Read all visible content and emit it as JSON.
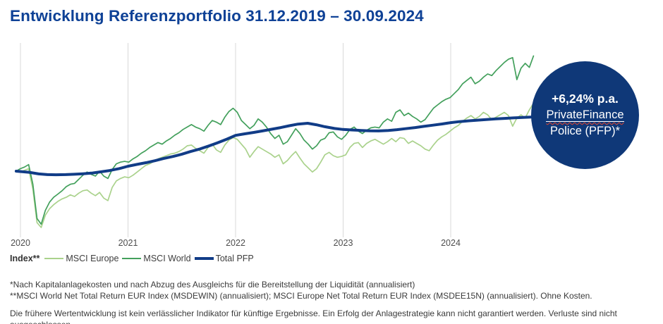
{
  "title": "Entwicklung Referenzportfolio 31.12.2019 – 30.09.2024",
  "badge": {
    "rate": "+6,24% p.a.",
    "product_line1": "PrivateFinance",
    "product_line2": "Police (PFP)*",
    "background_color": "#0f3878",
    "text_color": "#ffffff"
  },
  "legend": {
    "label": "Index**",
    "items": [
      {
        "name": "MSCI Europe",
        "color": "#aad28c"
      },
      {
        "name": "MSCI World",
        "color": "#43a05c"
      },
      {
        "name": "Total PFP",
        "color": "#113c87"
      }
    ]
  },
  "footnotes": {
    "line1": "*Nach Kapitalanlagekosten und nach Abzug des Ausgleichs für die Bereitstellung der Liquidität (annualisiert)",
    "line2": "**MSCI World Net Total Return EUR Index (MSDEWIN) (annualisiert); MSCI Europe Net Total Return EUR Index (MSDEE15N) (annualisiert). Ohne Kosten.",
    "disclaimer": "Die frühere Wertentwicklung ist kein verlässlicher Indikator für künftige Ergebnisse. Ein Erfolg der Anlagestrategie kann nicht garantiert werden. Verluste sind nicht ausgeschlossen."
  },
  "chart_data": {
    "type": "line",
    "title": "Entwicklung Referenzportfolio 31.12.2019 – 30.09.2024",
    "x_axis": {
      "ticks": [
        2020,
        2021,
        2022,
        2023,
        2024
      ],
      "range": [
        2019.96,
        2024.79
      ],
      "gridlines": true,
      "gridline_color": "#d9d9d9",
      "tick_color": "#4d4d4d"
    },
    "y_axis": {
      "visible": false,
      "indexed_base": 100,
      "range": [
        62,
        179
      ]
    },
    "legend_position": "bottom-left",
    "series": [
      {
        "name": "MSCI Europe",
        "color": "#aad28c",
        "width": 1.7,
        "x_start": 2019.96,
        "x_end": 2024.77,
        "values": [
          100,
          99.5,
          100.5,
          101.5,
          89,
          68.5,
          65.5,
          73,
          77,
          79.5,
          81.5,
          83,
          84,
          85.5,
          84.5,
          86.5,
          88,
          88.5,
          86.5,
          85,
          87,
          83.5,
          82,
          90,
          94,
          95.5,
          96.5,
          96,
          97.5,
          99.5,
          101.5,
          103.5,
          104.5,
          106,
          107.5,
          108.5,
          109.5,
          110.5,
          111,
          112,
          113.5,
          115.5,
          116,
          114,
          112.5,
          111,
          114.5,
          116.5,
          113,
          111.5,
          116,
          119,
          120.5,
          119.5,
          116.5,
          113.5,
          108.5,
          112,
          115,
          113.5,
          112,
          110.5,
          108.5,
          110,
          104.5,
          106.5,
          109.5,
          112,
          108,
          104.5,
          102,
          99.5,
          101.5,
          105.5,
          110,
          111.5,
          109.5,
          108.5,
          109,
          110,
          114.5,
          117,
          117.5,
          114.5,
          117,
          118.5,
          119.5,
          118,
          116.5,
          118,
          120,
          118,
          120.5,
          120,
          117,
          118.5,
          117,
          115.5,
          113.5,
          112.5,
          116,
          119,
          121,
          122.5,
          124.5,
          126.5,
          128,
          130.5,
          132.5,
          134,
          132,
          133.5,
          136,
          134.5,
          131.5,
          133,
          134.5,
          136,
          134,
          127.5,
          132.5,
          134.5,
          132.5,
          137.5,
          141.5
        ]
      },
      {
        "name": "MSCI World",
        "color": "#43a05c",
        "width": 1.7,
        "x_start": 2019.96,
        "x_end": 2024.77,
        "values": [
          100,
          101.5,
          102.5,
          104,
          92,
          71,
          67.5,
          76,
          81,
          84,
          86,
          88,
          90.5,
          92,
          92.5,
          95,
          97.5,
          99.5,
          98,
          97,
          100,
          97,
          95.5,
          101,
          104.5,
          105.5,
          106,
          105.5,
          107.5,
          109,
          111,
          112.5,
          114.5,
          116,
          117.5,
          116.5,
          118.5,
          120,
          122,
          123.5,
          125.5,
          127,
          128.5,
          127,
          126,
          124.5,
          128,
          131,
          130,
          128.5,
          133,
          136.5,
          138.5,
          136,
          131,
          128.5,
          126,
          128,
          132,
          130,
          127,
          123,
          120,
          122,
          116.5,
          118,
          122,
          126,
          123,
          119,
          116.5,
          113.5,
          115.5,
          119,
          120,
          123.5,
          124,
          121,
          119.5,
          122,
          125.5,
          127,
          124.5,
          123,
          125,
          126.5,
          127,
          126.5,
          130,
          132,
          130.5,
          136,
          137.5,
          134,
          135.5,
          133.5,
          132,
          130,
          131.5,
          135,
          138.5,
          140.5,
          142.5,
          144,
          145,
          147.5,
          150,
          153.5,
          155.5,
          157.5,
          153.5,
          155,
          157.5,
          159.5,
          158.5,
          161.5,
          164,
          166.5,
          168.5,
          169.5,
          156,
          163,
          166,
          163.5,
          170.5
        ]
      },
      {
        "name": "Total PFP",
        "color": "#113c87",
        "width": 4,
        "x": [
          2019.96,
          2020.08,
          2020.17,
          2020.25,
          2020.33,
          2020.42,
          2020.5,
          2020.58,
          2020.67,
          2020.75,
          2020.83,
          2020.92,
          2021,
          2021.08,
          2021.17,
          2021.25,
          2021.33,
          2021.42,
          2021.5,
          2021.58,
          2021.67,
          2021.75,
          2021.83,
          2021.92,
          2022,
          2022.08,
          2022.17,
          2022.25,
          2022.33,
          2022.42,
          2022.5,
          2022.58,
          2022.67,
          2022.75,
          2022.83,
          2022.92,
          2023,
          2023.08,
          2023.17,
          2023.25,
          2023.33,
          2023.42,
          2023.5,
          2023.58,
          2023.67,
          2023.75,
          2023.83,
          2023.92,
          2024,
          2024.08,
          2024.17,
          2024.25,
          2024.33,
          2024.42,
          2024.5,
          2024.58,
          2024.67,
          2024.78
        ],
        "values": [
          100,
          99.3,
          98.3,
          97.9,
          97.8,
          97.9,
          98.1,
          98.4,
          98.9,
          99.6,
          100.4,
          101.6,
          103,
          104.1,
          105.2,
          106.4,
          107.7,
          109,
          110.4,
          112,
          113.6,
          115.4,
          117.3,
          119.6,
          121.9,
          122.8,
          123.7,
          124.6,
          125.6,
          126.7,
          127.8,
          128.8,
          129.3,
          128.4,
          127.2,
          126.1,
          125.5,
          125.2,
          124.9,
          124.7,
          124.6,
          124.9,
          125.4,
          126,
          126.7,
          127.4,
          128.1,
          128.9,
          129.7,
          130.3,
          130.8,
          131.2,
          131.6,
          132,
          132.3,
          132.6,
          132.9,
          133.2
        ]
      }
    ],
    "annotation": {
      "text": "+6,24% p.a. PrivateFinance Police (PFP)*",
      "refers_to": "Total PFP"
    }
  }
}
